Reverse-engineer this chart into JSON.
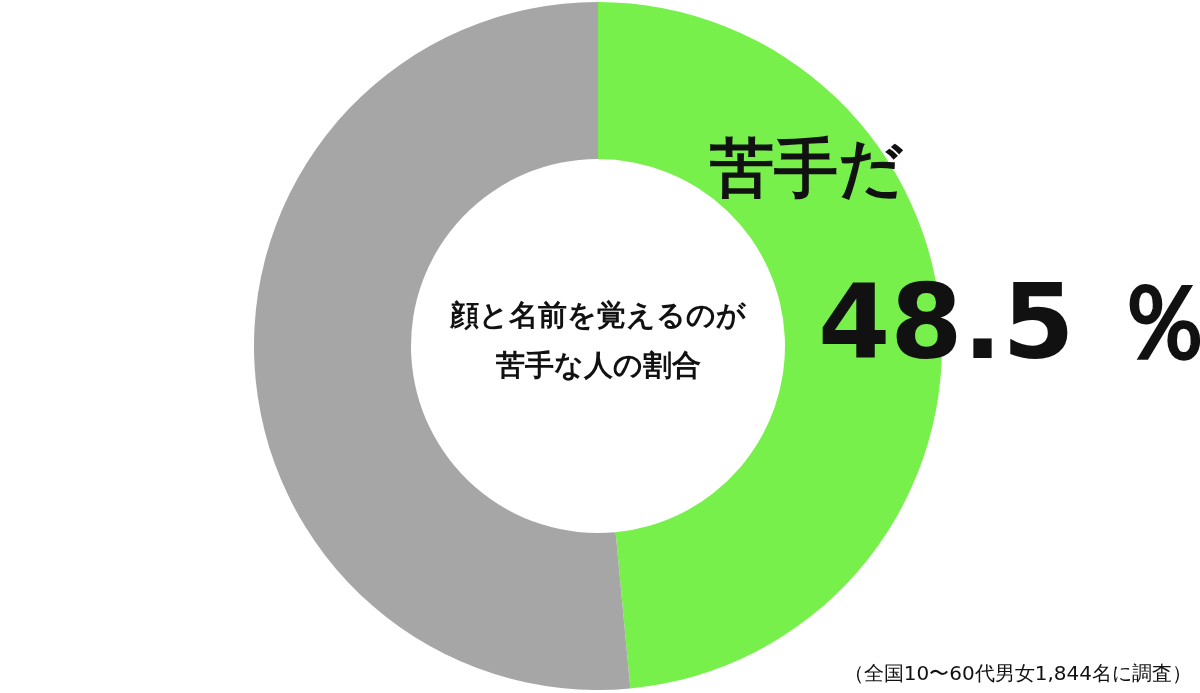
{
  "chart_data": {
    "type": "donut",
    "title": "顔と名前を覚えるのが苦手な人の割合",
    "categories": [
      "苦手だ",
      null
    ],
    "values": [
      48.5,
      51.5
    ],
    "colors": [
      "#77f04c",
      "#a6a6a6"
    ],
    "value_labels": [
      "48.5 ％",
      null
    ],
    "annotations": [
      "（全国10〜60代男女1,844名に調査）"
    ]
  }
}
